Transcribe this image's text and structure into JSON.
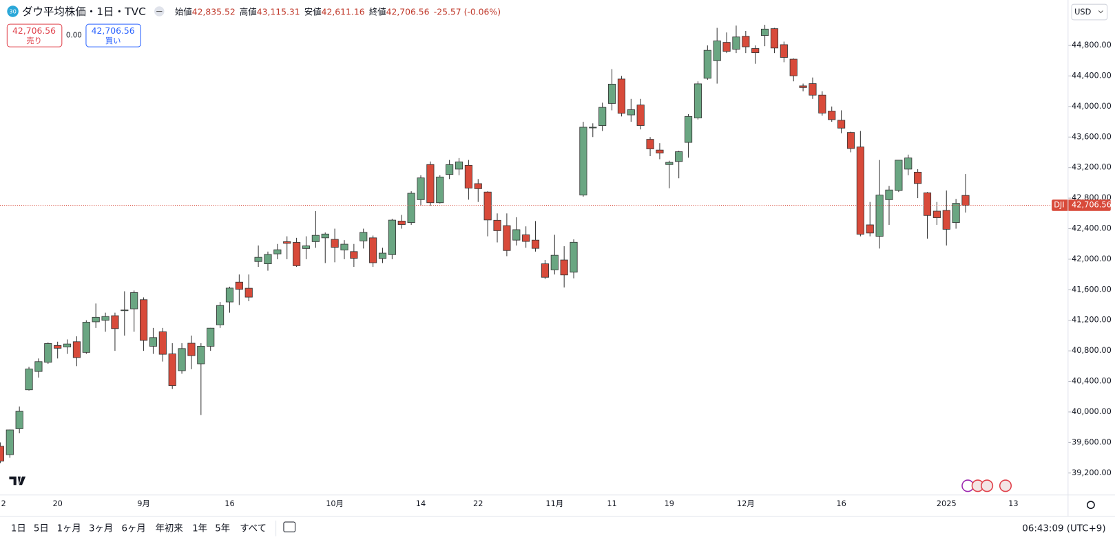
{
  "header": {
    "badge": "30",
    "symbol": "ダウ平均株価・1日・TVC",
    "open_label": "始値",
    "open": "42,835.52",
    "high_label": "高値",
    "high": "43,115.31",
    "low_label": "安値",
    "low": "42,611.16",
    "close_label": "終値",
    "close": "42,706.56",
    "change": "-25.57 (-0.06%)"
  },
  "order_panel": {
    "sell_price": "42,706.56",
    "sell_label": "売り",
    "spread": "0.00",
    "buy_price": "42,706.56",
    "buy_label": "買い"
  },
  "currency": "USD",
  "toolbar": {
    "ranges": [
      "1日",
      "5日",
      "1ヶ月",
      "3ヶ月",
      "6ヶ月",
      "年初来",
      "1年",
      "5年",
      "すべて"
    ],
    "clock": "06:43:09 (UTC+9)"
  },
  "chart_data": {
    "type": "candlestick",
    "up_color": "#6aa682",
    "down_color": "#d84a3a",
    "grid": false,
    "categories": [
      "2",
      null,
      null,
      null,
      null,
      null,
      "20",
      null,
      null,
      null,
      null,
      null,
      null,
      null,
      null,
      "9月",
      null,
      null,
      null,
      null,
      null,
      null,
      null,
      null,
      "16",
      null,
      null,
      null,
      null,
      null,
      null,
      null,
      null,
      null,
      null,
      "10月",
      null,
      null,
      null,
      null,
      null,
      null,
      null,
      null,
      "14",
      null,
      null,
      null,
      null,
      null,
      "22",
      null,
      null,
      null,
      null,
      null,
      null,
      null,
      "11月",
      null,
      null,
      null,
      null,
      null,
      "11",
      null,
      null,
      null,
      null,
      null,
      "19",
      null,
      null,
      null,
      null,
      null,
      null,
      null,
      "12月",
      null,
      null,
      null,
      null,
      null,
      null,
      null,
      null,
      null,
      "16",
      null,
      null,
      null,
      null,
      null,
      null,
      null,
      null,
      null,
      null,
      "2025",
      null,
      null,
      null,
      null,
      null,
      null,
      "13"
    ],
    "open": [
      39550,
      39440,
      39780,
      40290,
      40530,
      40650,
      40870,
      40850,
      40920,
      40780,
      41180,
      41200,
      41260,
      41330,
      41350,
      41470,
      40860,
      41050,
      40760,
      40540,
      40900,
      40630,
      40860,
      41140,
      41440,
      41700,
      41620,
      41970,
      41940,
      42070,
      42230,
      42220,
      42140,
      42230,
      42280,
      42260,
      42120,
      42100,
      42240,
      42280,
      42010,
      42060,
      42500,
      42480,
      42780,
      43240,
      42740,
      43110,
      43180,
      43230,
      42990,
      42880,
      42510,
      42440,
      42250,
      42320,
      42250,
      41940,
      41860,
      41990,
      41830,
      42840,
      43720,
      43750,
      44040,
      44360,
      43890,
      44020,
      43570,
      43430,
      43240,
      43280,
      43530,
      43850,
      44370,
      44600,
      44840,
      44750,
      44920,
      44760,
      44930,
      45020,
      44810,
      44620,
      44270,
      44300,
      44150,
      43940,
      43820,
      43660,
      43470,
      42450,
      42300,
      42780,
      42900,
      43180,
      43140,
      42870,
      42630,
      42640,
      42480,
      42835.52,
      null,
      null,
      null,
      null,
      null
    ],
    "high": [
      39600,
      39770,
      40070,
      40590,
      40700,
      40910,
      40920,
      40950,
      40990,
      41200,
      41420,
      41300,
      41300,
      41580,
      41590,
      41500,
      41100,
      41100,
      40900,
      40900,
      41000,
      40900,
      41100,
      41440,
      41640,
      41800,
      41800,
      42180,
      42100,
      42200,
      42300,
      42280,
      42300,
      42630,
      42350,
      42400,
      42250,
      42200,
      42400,
      42310,
      42150,
      42530,
      42580,
      42890,
      43100,
      43280,
      43100,
      43300,
      43325,
      43300,
      43050,
      42890,
      42600,
      42600,
      42550,
      42430,
      42500,
      41990,
      42320,
      42170,
      42260,
      43800,
      43780,
      44050,
      44490,
      44400,
      44100,
      44100,
      43600,
      43520,
      43290,
      43420,
      43900,
      44330,
      44800,
      45030,
      44970,
      45060,
      44990,
      44800,
      45070,
      45030,
      44850,
      44630,
      44300,
      44380,
      44200,
      44000,
      43950,
      43670,
      43680,
      42750,
      43300,
      42960,
      43300,
      43370,
      43180,
      42880,
      42750,
      42900,
      42790,
      43115.31,
      null,
      null,
      null,
      null,
      null
    ],
    "low": [
      39330,
      39400,
      39720,
      40280,
      40450,
      40630,
      40700,
      40760,
      40600,
      40760,
      41100,
      41050,
      40800,
      41000,
      41050,
      40800,
      40760,
      40660,
      40300,
      40500,
      40560,
      39960,
      40800,
      41100,
      41300,
      41400,
      41450,
      41900,
      41850,
      42000,
      42000,
      41900,
      42000,
      42150,
      41950,
      41960,
      42000,
      41900,
      42140,
      41900,
      41950,
      42000,
      42400,
      42450,
      42700,
      42700,
      42730,
      43050,
      43100,
      42780,
      42750,
      42300,
      42220,
      42040,
      42180,
      42150,
      42100,
      41740,
      41800,
      41630,
      41750,
      42820,
      43600,
      43680,
      43950,
      43870,
      43800,
      43700,
      43350,
      43310,
      42930,
      43060,
      43330,
      43830,
      44350,
      44300,
      44700,
      44700,
      44700,
      44560,
      44790,
      44700,
      44580,
      44330,
      44200,
      44100,
      43880,
      43800,
      43650,
      43400,
      42300,
      42300,
      42140,
      42450,
      42880,
      43100,
      42800,
      42270,
      42450,
      42180,
      42400,
      42611.16,
      null,
      null,
      null,
      null,
      null
    ],
    "close": [
      39357,
      39765,
      40008,
      40563,
      40659,
      40896,
      40834,
      40890,
      40712,
      41175,
      41240,
      41250,
      41091,
      41335,
      41563,
      40937,
      40974,
      40755,
      40345,
      40830,
      40737,
      40861,
      41097,
      41394,
      41622,
      41606,
      41503,
      42025,
      42063,
      42124,
      42208,
      41915,
      42175,
      42313,
      42330,
      42156,
      42197,
      42012,
      42352,
      41954,
      42080,
      42512,
      42454,
      42864,
      43065,
      42740,
      43077,
      43239,
      43275,
      42931,
      42924,
      42514,
      42374,
      42114,
      42387,
      42233,
      42142,
      41763,
      42052,
      41794,
      42222,
      43729,
      43729,
      43989,
      44293,
      43911,
      43958,
      43751,
      43445,
      43390,
      43269,
      43408,
      43870,
      44297,
      44736,
      44860,
      44722,
      44911,
      44782,
      44705,
      45014,
      44766,
      44643,
      44402,
      44248,
      44149,
      43914,
      43828,
      43717,
      43450,
      42327,
      42343,
      42840,
      42907,
      43297,
      43326,
      42992,
      42573,
      42544,
      42392,
      42732,
      42706.56,
      null,
      null,
      null,
      null,
      null
    ],
    "ylim": [
      38912,
      45395
    ],
    "yticks": [
      {
        "value": 39200,
        "label": "39,200.00"
      },
      {
        "value": 39600,
        "label": "39,600.00"
      },
      {
        "value": 40000,
        "label": "40,000.00"
      },
      {
        "value": 40400,
        "label": "40,400.00"
      },
      {
        "value": 40800,
        "label": "40,800.00"
      },
      {
        "value": 41200,
        "label": "41,200.00"
      },
      {
        "value": 41600,
        "label": "41,600.00"
      },
      {
        "value": 42000,
        "label": "42,000.00"
      },
      {
        "value": 42400,
        "label": "42,400.00"
      },
      {
        "value": 42800,
        "label": "42,800.00"
      },
      {
        "value": 43200,
        "label": "43,200.00"
      },
      {
        "value": 43600,
        "label": "43,600.00"
      },
      {
        "value": 44000,
        "label": "44,000.00"
      },
      {
        "value": 44400,
        "label": "44,400.00"
      },
      {
        "value": 44800,
        "label": "44,800.00"
      }
    ],
    "last_price": {
      "value": 42706.56,
      "label": "42,706.56"
    },
    "symbol_tag": "DJI"
  }
}
